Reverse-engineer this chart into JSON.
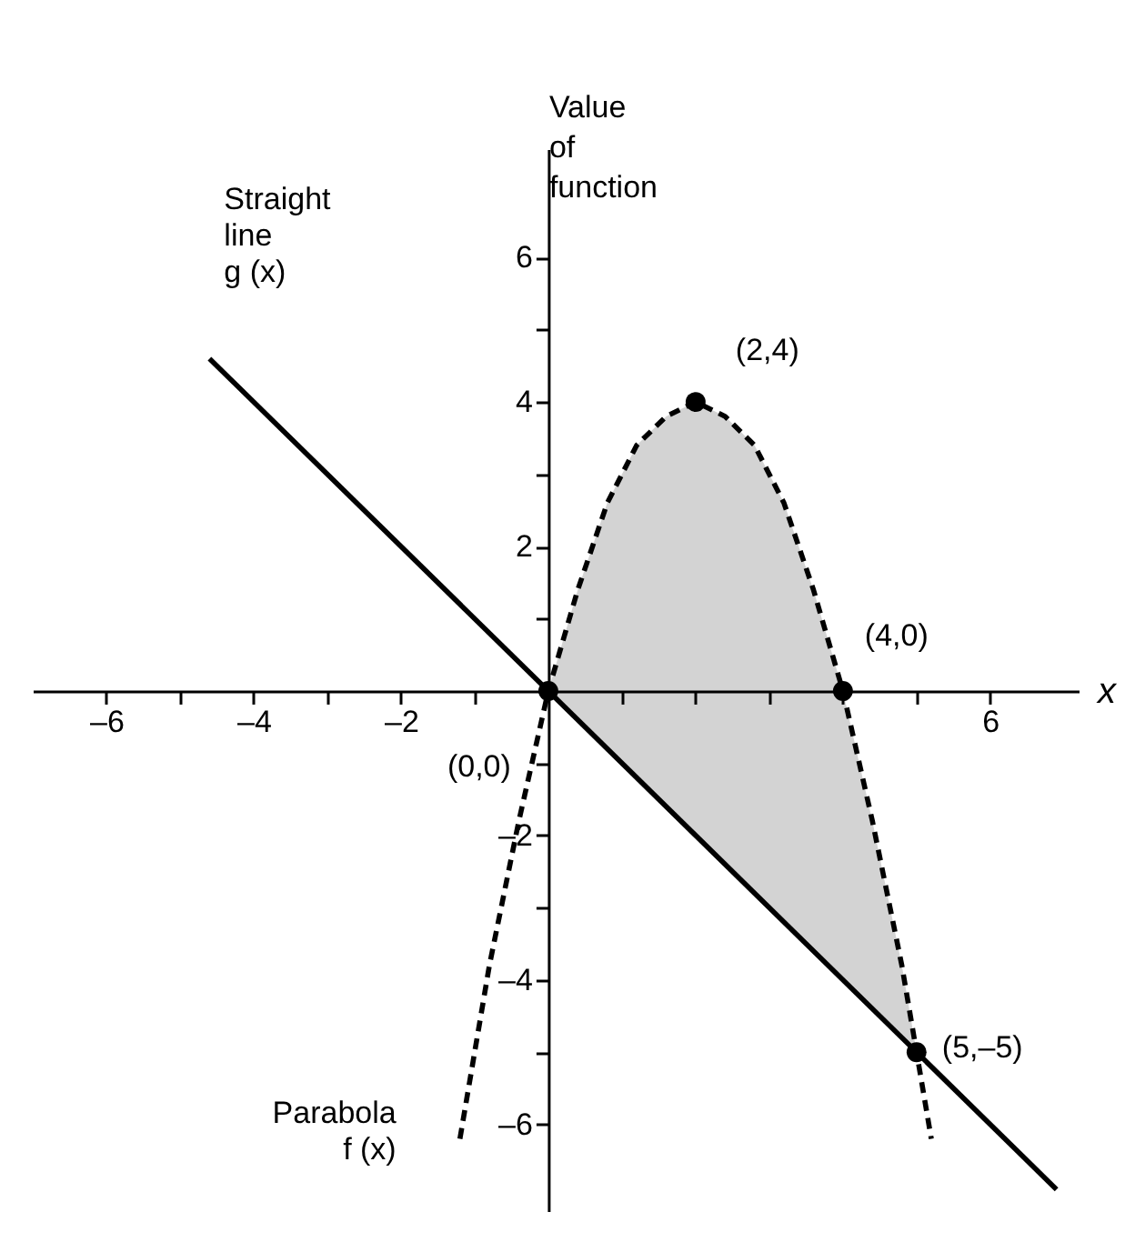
{
  "chart_data": {
    "type": "line",
    "xlabel": "x",
    "ylabel": "Value of function",
    "xlim": [
      -7,
      7.2
    ],
    "ylim": [
      -7.2,
      7.5
    ],
    "xticks": [
      {
        "value": -6,
        "label": "–6"
      },
      {
        "value": -5,
        "label": null
      },
      {
        "value": -4,
        "label": "–4"
      },
      {
        "value": -3,
        "label": null
      },
      {
        "value": -2,
        "label": "–2"
      },
      {
        "value": -1,
        "label": null
      },
      {
        "value": 1,
        "label": null
      },
      {
        "value": 2,
        "label": null
      },
      {
        "value": 3,
        "label": null
      },
      {
        "value": 4,
        "label": null
      },
      {
        "value": 5,
        "label": null
      },
      6
    ],
    "yticks": [
      {
        "value": -6,
        "label": "–6"
      },
      {
        "value": -5,
        "label": null
      },
      {
        "value": -4,
        "label": "–4"
      },
      {
        "value": -3,
        "label": null
      },
      {
        "value": -2,
        "label": "–2"
      },
      {
        "value": -1,
        "label": null
      },
      {
        "value": 1,
        "label": null
      },
      2,
      {
        "value": 3,
        "label": null
      },
      4,
      {
        "value": 5,
        "label": null
      },
      6
    ],
    "grid": false,
    "series": [
      {
        "name": "Straight line g (x)",
        "color": "#000000",
        "line_style": "solid",
        "x": [
          -4.6,
          6.9
        ],
        "values": [
          4.6,
          -6.9
        ]
      },
      {
        "name": "Parabola f (x)",
        "color": "#000000",
        "line_style": "dashed",
        "x": [
          -1.2,
          -0.8,
          -0.4,
          0,
          0.4,
          0.8,
          1.2,
          1.6,
          2,
          2.4,
          2.8,
          3.2,
          3.6,
          4,
          4.4,
          4.8,
          5,
          5.2
        ],
        "values": [
          -6.2,
          -3.8,
          -1.8,
          0,
          1.4,
          2.6,
          3.4,
          3.8,
          4,
          3.8,
          3.4,
          2.6,
          1.4,
          0,
          -1.8,
          -3.8,
          -5,
          -6.2
        ],
        "lower": [
          null,
          null,
          null,
          0,
          -0.4,
          -0.8,
          -1.2,
          -1.6,
          -2,
          -2.4,
          -2.8,
          -3.2,
          -3.6,
          -4,
          -4.4,
          -4.8,
          -5,
          null
        ],
        "upper": [
          null,
          null,
          null,
          0,
          1.4,
          2.6,
          3.4,
          3.8,
          4,
          3.8,
          3.4,
          2.6,
          1.4,
          0,
          -1.8,
          -3.8,
          -5,
          null
        ]
      },
      {
        "type": "scatter",
        "color": "#000000",
        "marker": "circle",
        "x": [
          0,
          2,
          4,
          5
        ],
        "values": [
          0,
          4,
          0,
          -5
        ]
      }
    ],
    "annotations": [
      {
        "text": "(0,0)",
        "x": 0,
        "y": 0
      },
      {
        "text": "(2,4)",
        "x": 2,
        "y": 4
      },
      {
        "text": "(4,0)",
        "x": 4,
        "y": 0
      },
      {
        "text": "(5,–5)",
        "x": 5,
        "y": -5
      }
    ]
  }
}
